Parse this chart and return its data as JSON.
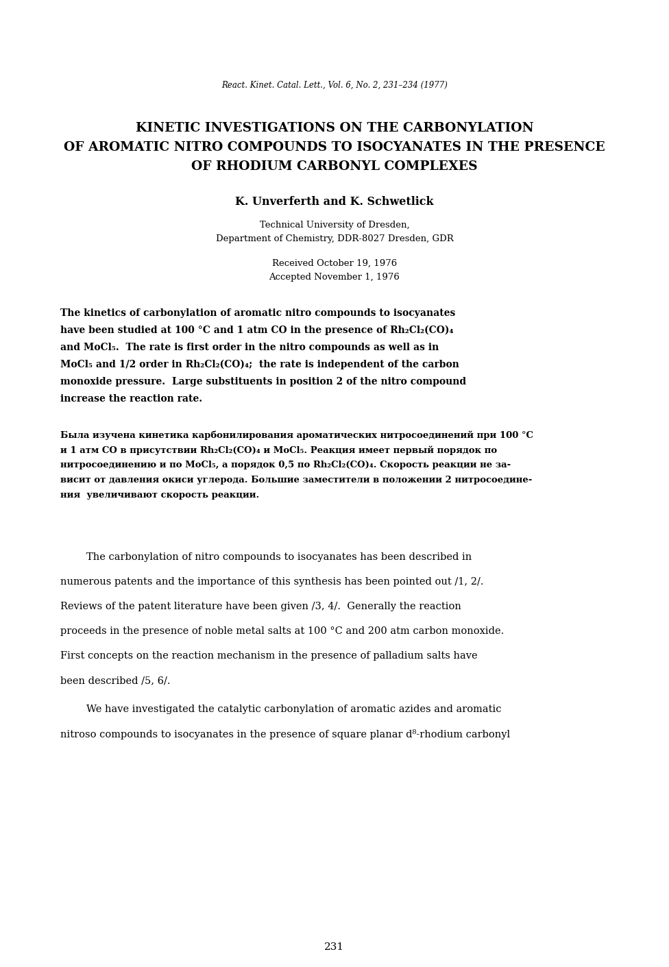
{
  "background_color": "#ffffff",
  "journal_ref": "React. Kinet. Catal. Lett., Vol. 6, No. 2, 231–234 (1977)",
  "title_line1": "KINETIC INVESTIGATIONS ON THE CARBONYLATION",
  "title_line2": "OF AROMATIC NITRO COMPOUNDS TO ISOCYANATES IN THE PRESENCE",
  "title_line3": "OF RHODIUM CARBONYL COMPLEXES",
  "authors": "K. Unverferth and K. Schwetlick",
  "affiliation1": "Technical University of Dresden,",
  "affiliation2": "Department of Chemistry, DDR-8027 Dresden, GDR",
  "received": "Received October 19, 1976",
  "accepted": "Accepted November 1, 1976",
  "abstract_en_lines": [
    "The kinetics of carbonylation of aromatic nitro compounds to isocyanates",
    "have been studied at 100 °C and 1 atm CO in the presence of Rh₂Cl₂(CO)₄",
    "and MoCl₅.  The rate is first order in the nitro compounds as well as in",
    "MoCl₅ and 1/2 order in Rh₂Cl₂(CO)₄;  the rate is independent of the carbon",
    "monoxide pressure.  Large substituents in position 2 of the nitro compound",
    "increase the reaction rate."
  ],
  "abstract_ru_lines": [
    "Была изучена кинетика карбонилирования ароматических нитросоединений при 100 °C",
    "и 1 атм CO в присутствии Rh₂Cl₂(CO)₄ и MoCl₅. Реакция имеет первый порядок по",
    "нитросоединению и по MoCl₅, а порядок 0,5 по Rh₂Cl₂(CO)₄. Скорость реакции не за-",
    "висит от давления окиси углерода. Большие заместители в положении 2 нитросоедине-",
    "ния  увеличивают скорость реакции."
  ],
  "body_para1_lines": [
    "The carbonylation of nitro compounds to isocyanates has been described in",
    "numerous patents and the importance of this synthesis has been pointed out /1, 2/.",
    "Reviews of the patent literature have been given /3, 4/.  Generally the reaction",
    "proceeds in the presence of noble metal salts at 100 °C and 200 atm carbon monoxide.",
    "First concepts on the reaction mechanism in the presence of palladium salts have",
    "been described /5, 6/."
  ],
  "body_para2_lines": [
    "We have investigated the catalytic carbonylation of aromatic azides and aromatic",
    "nitroso compounds to isocyanates in the presence of square planar d⁸-rhodium carbonyl"
  ],
  "page_number": "231"
}
